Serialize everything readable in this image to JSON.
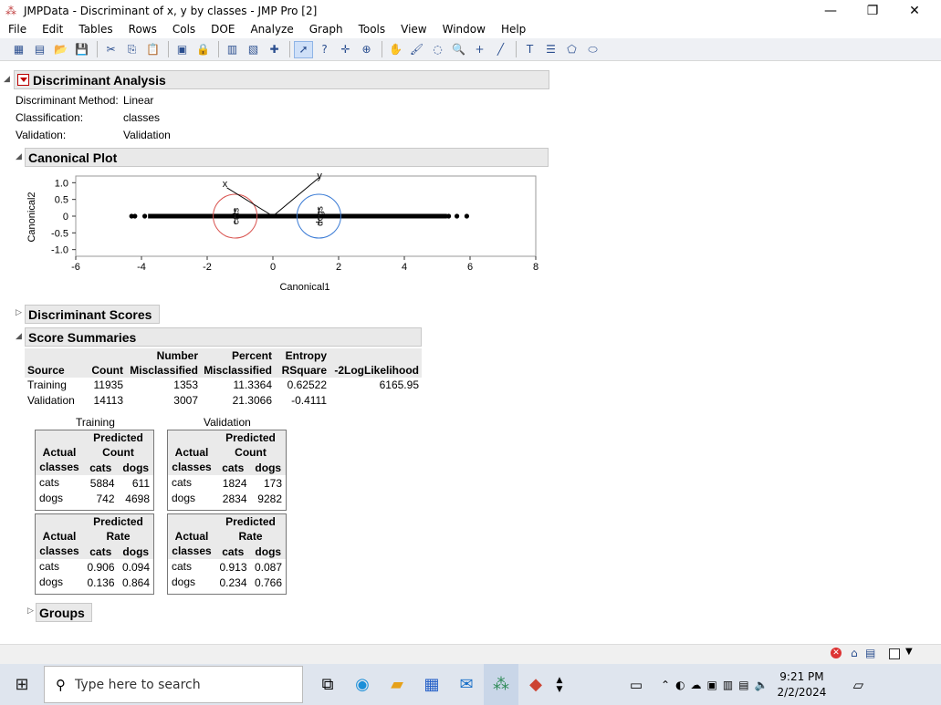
{
  "window": {
    "title": "JMPData - Discriminant of x, y by classes - JMP Pro [2]",
    "minimize": "—",
    "restore": "❐",
    "close": "✕"
  },
  "menu": [
    "File",
    "Edit",
    "Tables",
    "Rows",
    "Cols",
    "DOE",
    "Analyze",
    "Graph",
    "Tools",
    "View",
    "Window",
    "Help"
  ],
  "report": {
    "title": "Discriminant Analysis",
    "info": [
      {
        "label": "Discriminant Method:",
        "value": "Linear"
      },
      {
        "label": "Classification:",
        "value": "classes"
      },
      {
        "label": "Validation:",
        "value": "Validation"
      }
    ],
    "canonical_plot": {
      "title": "Canonical Plot",
      "xlabel": "Canonical1",
      "ylabel": "Canonical2",
      "xticks": [
        "-6",
        "-4",
        "-2",
        "0",
        "2",
        "4",
        "6",
        "8"
      ],
      "yticks": [
        "1.0",
        "0.5",
        "0",
        "-0.5",
        "-1.0"
      ],
      "circle_labels": [
        "cats",
        "dogs"
      ],
      "ray_labels": [
        "x",
        "y"
      ]
    },
    "discriminant_scores": {
      "title": "Discriminant Scores"
    },
    "score_summaries": {
      "title": "Score Summaries",
      "headers_top": [
        "",
        "",
        "Number",
        "Percent",
        "Entropy",
        ""
      ],
      "headers_bottom": [
        "Source",
        "Count",
        "Misclassified",
        "Misclassified",
        "RSquare",
        "-2LogLikelihood"
      ],
      "rows": [
        [
          "Training",
          "11935",
          "1353",
          "11.3364",
          "0.62522",
          "6165.95"
        ],
        [
          "Validation",
          "14113",
          "3007",
          "21.3066",
          "-0.4111",
          ""
        ]
      ]
    },
    "confusion": {
      "training_label": "Training",
      "validation_label": "Validation",
      "actual": "Actual",
      "classes": "classes",
      "predicted": "Predicted",
      "count": "Count",
      "rate": "Rate",
      "cols": [
        "cats",
        "dogs"
      ],
      "training_count": [
        [
          "cats",
          "5884",
          "611"
        ],
        [
          "dogs",
          "742",
          "4698"
        ]
      ],
      "validation_count": [
        [
          "cats",
          "1824",
          "173"
        ],
        [
          "dogs",
          "2834",
          "9282"
        ]
      ],
      "training_rate": [
        [
          "cats",
          "0.906",
          "0.094"
        ],
        [
          "dogs",
          "0.136",
          "0.864"
        ]
      ],
      "validation_rate": [
        [
          "cats",
          "0.913",
          "0.087"
        ],
        [
          "dogs",
          "0.234",
          "0.766"
        ]
      ]
    },
    "groups": {
      "title": "Groups"
    }
  },
  "taskbar": {
    "search_placeholder": "Type here to search",
    "time": "9:21 PM",
    "date": "2/2/2024"
  },
  "chart_data": {
    "type": "scatter",
    "xlabel": "Canonical1",
    "ylabel": "Canonical2",
    "xlim": [
      -6,
      8
    ],
    "ylim": [
      -1.2,
      1.2
    ],
    "x_extent_of_points": [
      -4.3,
      5.9
    ],
    "group_means": [
      {
        "name": "cats",
        "x": -1.15,
        "y": 0
      },
      {
        "name": "dogs",
        "x": 1.4,
        "y": 0
      }
    ]
  }
}
